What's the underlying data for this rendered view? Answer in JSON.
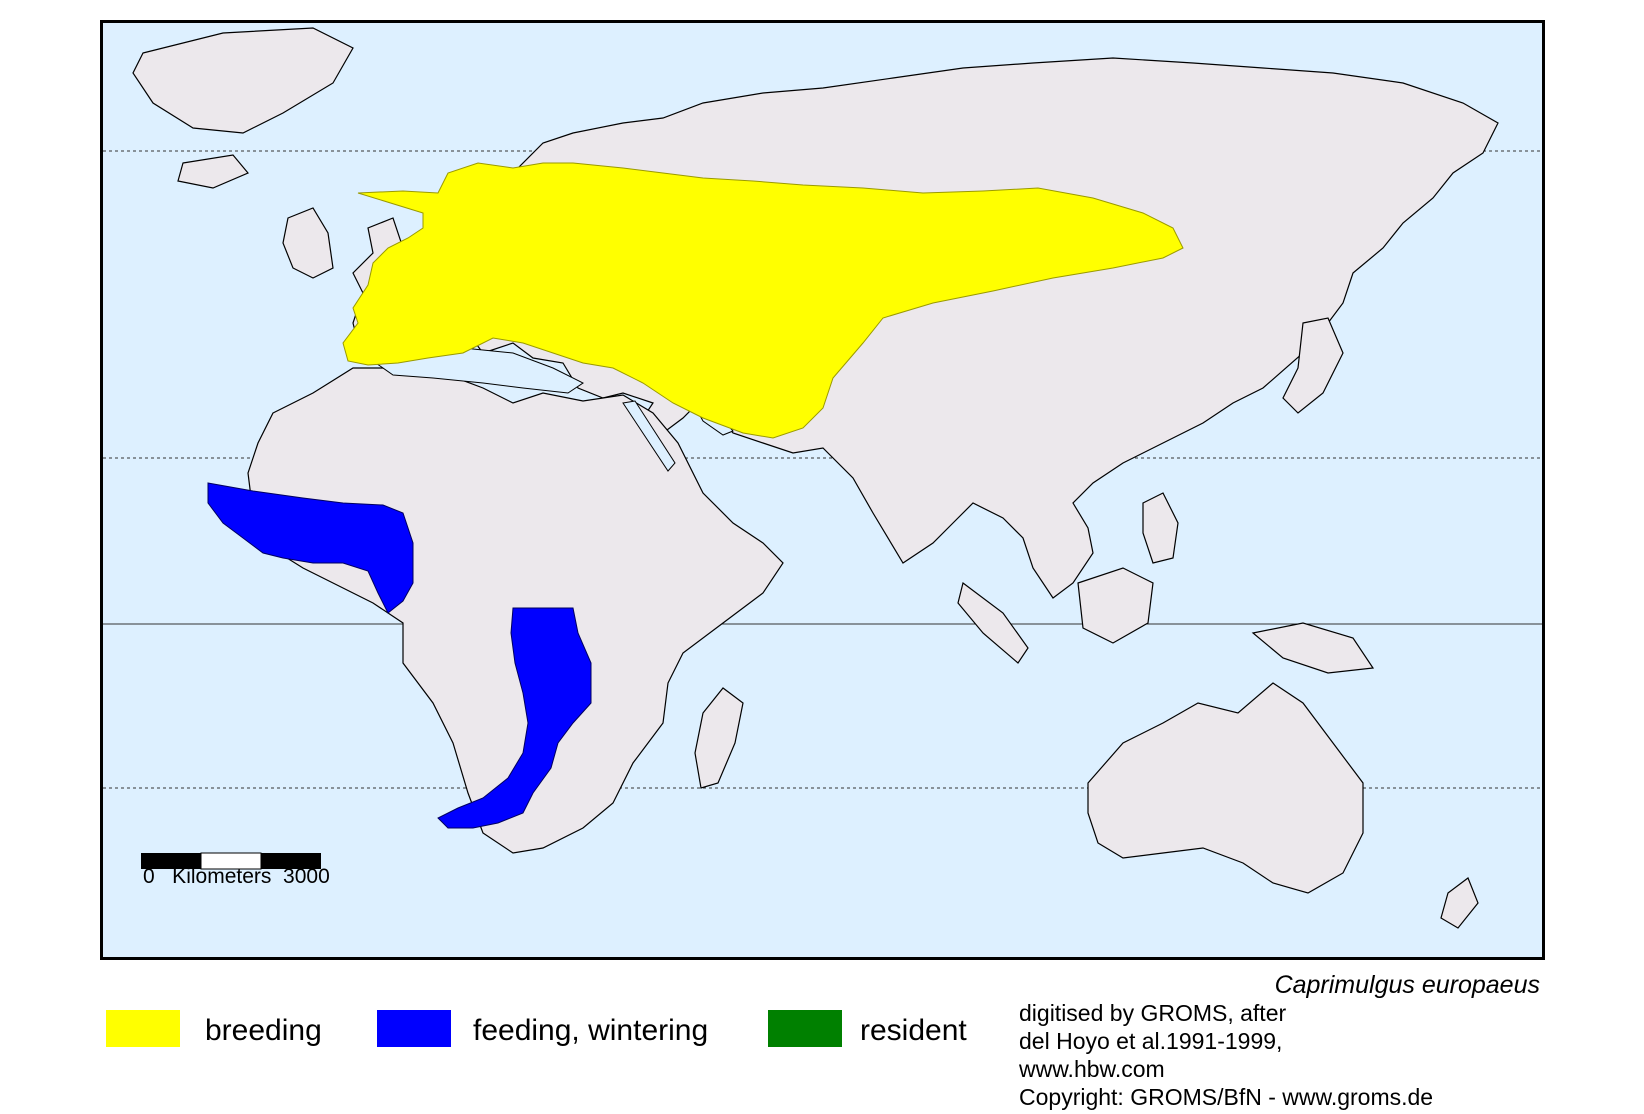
{
  "map": {
    "colors": {
      "ocean": "#ddf0ff",
      "land": "#ece8ec",
      "borders": "#000000",
      "rivers": "#2b2bd6",
      "breeding": "#ffff00",
      "wintering": "#0000ff",
      "resident": "#008000"
    },
    "scale_bar": {
      "text": "0   Kilometers  3000"
    }
  },
  "species": {
    "name": "Caprimulgus europaeus"
  },
  "legend": {
    "items": [
      {
        "label": "breeding",
        "color": "#ffff00"
      },
      {
        "label": "feeding, wintering",
        "color": "#0000ff"
      },
      {
        "label": "resident",
        "color": "#008000"
      }
    ]
  },
  "credits": {
    "line1": "digitised by GROMS, after",
    "line2": "del Hoyo et al.1991-1999,",
    "line3": "www.hbw.com",
    "line4": "Copyright: GROMS/BfN - www.groms.de"
  }
}
